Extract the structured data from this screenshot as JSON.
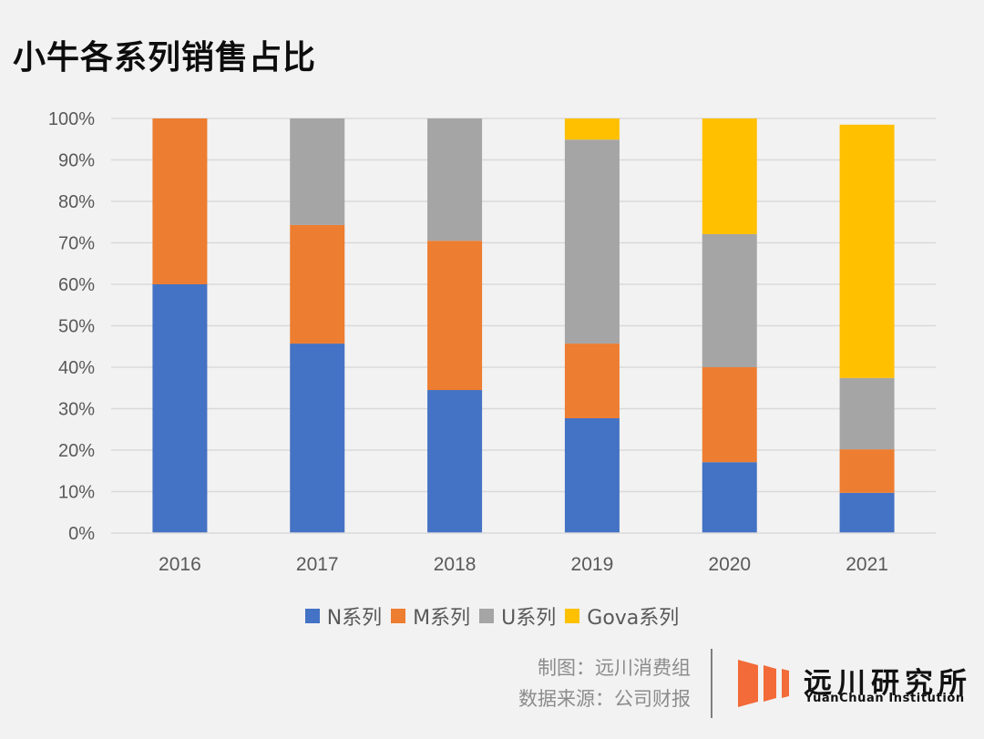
{
  "title": "小牛各系列销售占比",
  "chart_data": {
    "type": "bar",
    "stacked": true,
    "title": "小牛各系列销售占比",
    "xlabel": "",
    "ylabel": "",
    "categories": [
      "2016",
      "2017",
      "2018",
      "2019",
      "2020",
      "2021"
    ],
    "ylim": [
      0,
      100
    ],
    "yticks": [
      "0%",
      "10%",
      "20%",
      "30%",
      "40%",
      "50%",
      "60%",
      "70%",
      "80%",
      "90%",
      "100%"
    ],
    "grid": true,
    "legend_position": "bottom",
    "series": [
      {
        "name": "N系列",
        "color": "#4472c4",
        "values": [
          60,
          45.7,
          34.5,
          27.7,
          17.1,
          9.7
        ]
      },
      {
        "name": "M系列",
        "color": "#ed7d31",
        "values": [
          40,
          28.6,
          36,
          18,
          22.9,
          10.5
        ]
      },
      {
        "name": "U系列",
        "color": "#a5a5a5",
        "values": [
          0,
          25.7,
          29.5,
          49.2,
          32.1,
          17.2
        ]
      },
      {
        "name": "Gova系列",
        "color": "#ffc000",
        "values": [
          0,
          0,
          0,
          5.1,
          27.9,
          61.1
        ]
      }
    ]
  },
  "footer": {
    "credit_line1": "制图：远川消费组",
    "credit_line2": "数据来源：公司财报",
    "logo_cn": "远川研究所",
    "logo_en": "YuanChuan Institution",
    "logo_color": "#f26b38"
  }
}
